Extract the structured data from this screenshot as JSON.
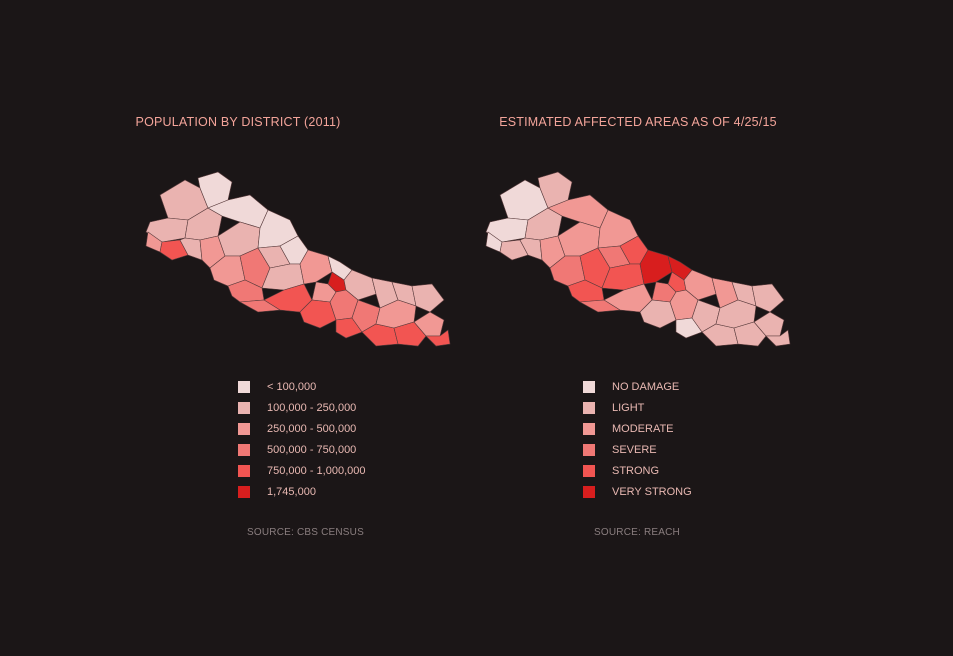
{
  "maps": [
    {
      "title": "POPULATION BY DISTRICT (2011)",
      "legend": [
        {
          "label": "< 100,000",
          "color": "#f0d9d8"
        },
        {
          "label": "100,000 - 250,000",
          "color": "#eab3b0"
        },
        {
          "label": "250,000 - 500,000",
          "color": "#f19894"
        },
        {
          "label": "500,000 - 750,000",
          "color": "#f07875"
        },
        {
          "label": "750,000 - 1,000,000",
          "color": "#f25552"
        },
        {
          "label": "1,745,000",
          "color": "#d81e1e"
        }
      ],
      "source": "SOURCE: CBS CENSUS"
    },
    {
      "title": "ESTIMATED AFFECTED AREAS AS OF 4/25/15",
      "legend": [
        {
          "label": "NO DAMAGE",
          "color": "#f0d9d8"
        },
        {
          "label": "LIGHT",
          "color": "#eab3b0"
        },
        {
          "label": "MODERATE",
          "color": "#f19894"
        },
        {
          "label": "SEVERE",
          "color": "#f07875"
        },
        {
          "label": "STRONG",
          "color": "#f25552"
        },
        {
          "label": "VERY STRONG",
          "color": "#d81e1e"
        }
      ],
      "source": "SOURCE: REACH"
    }
  ]
}
